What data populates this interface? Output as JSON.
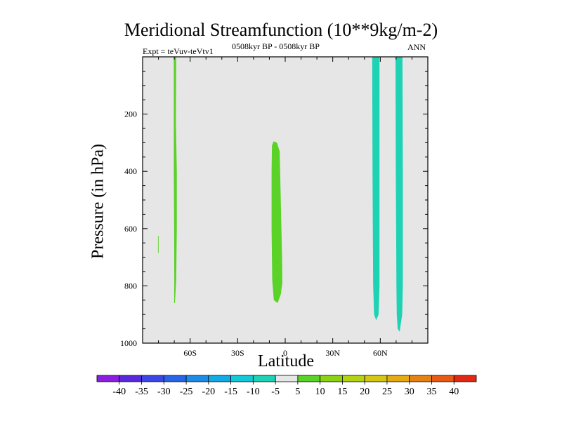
{
  "chart_data": {
    "type": "heatmap",
    "title": "Meridional Streamfunction (10**9kg/m-2)",
    "subtitle_left": "Expt = teVuv-teVtv1",
    "subtitle_center": "0508kyr BP - 0508kyr BP",
    "subtitle_right": "ANN",
    "xlabel": "Latitude",
    "ylabel": "Pressure (in hPa)",
    "xlim": [
      -90,
      90
    ],
    "ylim": [
      1000,
      0
    ],
    "x_ticks": [
      {
        "value": -60,
        "label": "60S"
      },
      {
        "value": -30,
        "label": "30S"
      },
      {
        "value": 0,
        "label": "0"
      },
      {
        "value": 30,
        "label": "30N"
      },
      {
        "value": 60,
        "label": "60N"
      }
    ],
    "y_ticks": [
      {
        "value": 200,
        "label": "200"
      },
      {
        "value": 400,
        "label": "400"
      },
      {
        "value": 600,
        "label": "600"
      },
      {
        "value": 800,
        "label": "800"
      },
      {
        "value": 1000,
        "label": "1000"
      }
    ],
    "background_color": "#e6e6e6",
    "colorbar": {
      "labels": [
        "-40",
        "-35",
        "-30",
        "-25",
        "-20",
        "-15",
        "-10",
        "-5",
        "5",
        "10",
        "15",
        "20",
        "25",
        "30",
        "35",
        "40"
      ],
      "colors": [
        "#8c1ee0",
        "#5a28dc",
        "#3c46e6",
        "#2864e6",
        "#1e8ce6",
        "#14aae6",
        "#14c8d8",
        "#1ed2b4",
        "#e6e6e6",
        "#5ad228",
        "#8cd214",
        "#b4d214",
        "#d2c814",
        "#e6aa14",
        "#e68214",
        "#e65a14",
        "#e02814"
      ]
    },
    "regions": [
      {
        "name": "positive cell near 68S",
        "level": "5 to 10",
        "color": "#5ad228",
        "outline": [
          [
            -70.3,
            0
          ],
          [
            -68.8,
            0
          ],
          [
            -69.0,
            230
          ],
          [
            -68.4,
            400
          ],
          [
            -68.4,
            600
          ],
          [
            -68.8,
            780
          ],
          [
            -69.6,
            860
          ],
          [
            -70.1,
            860
          ],
          [
            -70.0,
            780
          ],
          [
            -70.1,
            600
          ],
          [
            -70.3,
            400
          ]
        ]
      },
      {
        "name": "positive sliver near 80S",
        "level": "5 to 10",
        "color": "#5ad228",
        "outline": [
          [
            -80.3,
            625
          ],
          [
            -79.9,
            625
          ],
          [
            -79.9,
            685
          ],
          [
            -80.3,
            685
          ]
        ]
      },
      {
        "name": "positive cell near 5S",
        "level": "5 to 10",
        "color": "#5ad228",
        "outline": [
          [
            -7.3,
            295
          ],
          [
            -5.2,
            300
          ],
          [
            -3.5,
            330
          ],
          [
            -2.8,
            500
          ],
          [
            -2.0,
            700
          ],
          [
            -1.8,
            790
          ],
          [
            -2.8,
            830
          ],
          [
            -4.8,
            860
          ],
          [
            -7.2,
            850
          ],
          [
            -8.2,
            780
          ],
          [
            -8.6,
            600
          ],
          [
            -8.6,
            400
          ],
          [
            -8.4,
            310
          ]
        ]
      },
      {
        "name": "negative cell near 57N",
        "level": "-10 to -5",
        "color": "#1ed2b4",
        "outline": [
          [
            54.9,
            0
          ],
          [
            59.5,
            0
          ],
          [
            59.5,
            400
          ],
          [
            59.5,
            800
          ],
          [
            58.9,
            900
          ],
          [
            57.4,
            920
          ],
          [
            56.1,
            900
          ],
          [
            55.5,
            800
          ],
          [
            55.3,
            600
          ],
          [
            55.1,
            400
          ]
        ]
      },
      {
        "name": "negative cell near 71N",
        "level": "-10 to -5",
        "color": "#1ed2b4",
        "outline": [
          [
            69.6,
            0
          ],
          [
            74.0,
            0
          ],
          [
            74.2,
            400
          ],
          [
            74.2,
            800
          ],
          [
            73.8,
            900
          ],
          [
            72.2,
            960
          ],
          [
            71.0,
            950
          ],
          [
            70.4,
            900
          ],
          [
            70.2,
            800
          ],
          [
            70.0,
            600
          ],
          [
            69.8,
            400
          ]
        ]
      }
    ]
  }
}
